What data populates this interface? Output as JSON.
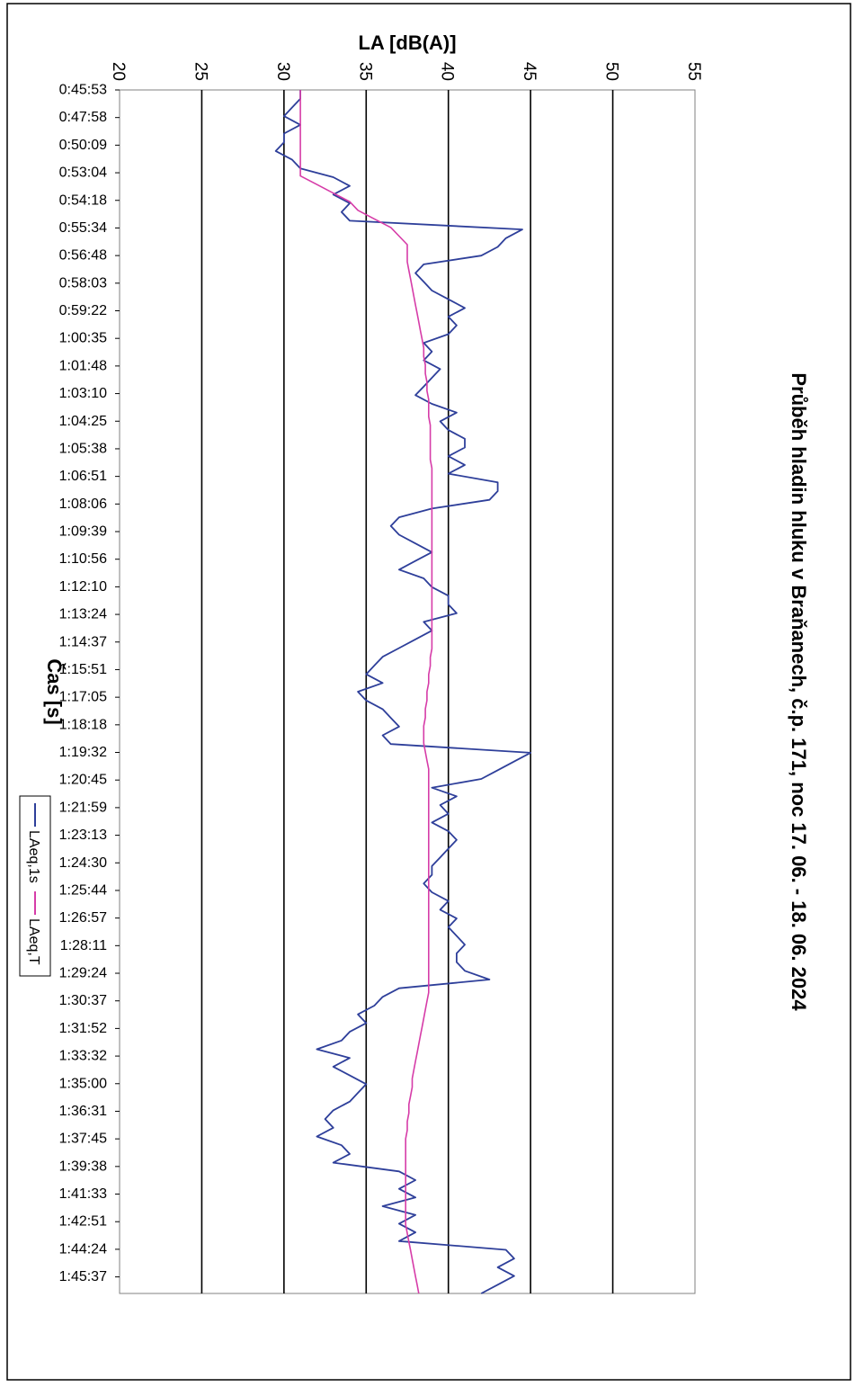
{
  "chart_data": {
    "type": "line",
    "title": "Průběh hladin hluku v Braňanech, č.p. 171, noc 17. 06. - 18. 06. 2024",
    "xlabel": "Čas [s]",
    "ylabel": "LA [dB(A)]",
    "ylim": [
      20,
      55
    ],
    "yticks": [
      20,
      25,
      30,
      35,
      40,
      45,
      50,
      55
    ],
    "grid": true,
    "legend_position": "bottom",
    "x_tick_labels": [
      "0:45:53",
      "0:47:58",
      "0:50:09",
      "0:53:04",
      "0:54:18",
      "0:55:34",
      "0:56:48",
      "0:58:03",
      "0:59:22",
      "1:00:35",
      "1:01:48",
      "1:03:10",
      "1:04:25",
      "1:05:38",
      "1:06:51",
      "1:08:06",
      "1:09:39",
      "1:10:56",
      "1:12:10",
      "1:13:24",
      "1:14:37",
      "1:15:51",
      "1:17:05",
      "1:18:18",
      "1:19:32",
      "1:20:45",
      "1:21:59",
      "1:23:13",
      "1:24:30",
      "1:25:44",
      "1:26:57",
      "1:28:11",
      "1:29:24",
      "1:30:37",
      "1:31:52",
      "1:33:32",
      "1:35:00",
      "1:36:31",
      "1:37:45",
      "1:39:38",
      "1:41:33",
      "1:42:51",
      "1:44:24",
      "1:45:37"
    ],
    "series": [
      {
        "name": "LAeq,1s",
        "color": "#2e3f9a",
        "values": [
          31,
          31,
          30.5,
          30,
          31,
          30,
          30,
          29.5,
          30.5,
          31,
          33,
          34,
          33,
          34,
          33.5,
          34,
          44.5,
          43.5,
          43,
          42,
          38.5,
          38,
          38.5,
          39,
          40,
          41,
          40,
          40.5,
          40,
          38.5,
          39,
          38.5,
          39.5,
          39,
          38.5,
          38,
          39,
          40.5,
          39.5,
          40,
          41,
          41,
          40,
          41,
          40,
          43,
          43,
          42.5,
          39,
          37,
          36.5,
          37,
          38,
          39,
          38,
          37,
          38.5,
          39,
          40,
          40,
          40.5,
          38.5,
          39,
          38,
          37,
          36,
          35.5,
          35,
          36,
          34.5,
          35,
          36,
          36.5,
          37,
          36,
          36.5,
          45,
          44,
          43,
          42,
          39,
          40.5,
          39.5,
          40,
          39,
          40,
          40.5,
          40,
          39.5,
          39,
          39,
          38.5,
          39,
          40,
          39.5,
          40.5,
          40,
          40.5,
          41,
          40.5,
          40.5,
          41,
          42.5,
          37,
          36,
          35.5,
          34.5,
          35,
          34,
          33.5,
          32,
          34,
          33,
          34,
          35,
          34.5,
          34,
          33,
          32.5,
          33,
          32,
          33.5,
          34,
          33,
          37,
          38,
          37,
          38,
          36,
          38,
          37,
          38,
          37,
          43.5,
          44,
          43,
          44,
          43,
          42
        ]
      },
      {
        "name": "LAeq,T",
        "color": "#d63ca8",
        "values": [
          31,
          31,
          31,
          31,
          31,
          31,
          31,
          31,
          31,
          31,
          31,
          32,
          33,
          34,
          34.5,
          35.5,
          36.5,
          37,
          37.5,
          37.5,
          37.5,
          37.6,
          37.7,
          37.8,
          37.9,
          38,
          38.1,
          38.2,
          38.3,
          38.4,
          38.5,
          38.5,
          38.6,
          38.6,
          38.7,
          38.7,
          38.8,
          38.8,
          38.8,
          38.9,
          38.9,
          38.9,
          38.9,
          38.9,
          39,
          39,
          39,
          39,
          39,
          39,
          39,
          39,
          39,
          39,
          39,
          39,
          39,
          39,
          39,
          39,
          39,
          39,
          39,
          39,
          39,
          39,
          38.9,
          38.9,
          38.8,
          38.8,
          38.7,
          38.7,
          38.6,
          38.6,
          38.5,
          38.5,
          38.5,
          38.6,
          38.7,
          38.8,
          38.8,
          38.8,
          38.8,
          38.8,
          38.8,
          38.8,
          38.8,
          38.8,
          38.8,
          38.8,
          38.8,
          38.8,
          38.8,
          38.8,
          38.8,
          38.8,
          38.8,
          38.8,
          38.8,
          38.8,
          38.8,
          38.8,
          38.8,
          38.8,
          38.8,
          38.8,
          38.7,
          38.6,
          38.5,
          38.4,
          38.3,
          38.2,
          38.1,
          38,
          37.9,
          37.8,
          37.8,
          37.7,
          37.6,
          37.6,
          37.5,
          37.5,
          37.4,
          37.4,
          37.4,
          37.4,
          37.4,
          37.4,
          37.4,
          37.4,
          37.4,
          37.4,
          37.4,
          37.5,
          37.6,
          37.7,
          37.8,
          37.9,
          38,
          38.1,
          38.2
        ]
      }
    ]
  }
}
